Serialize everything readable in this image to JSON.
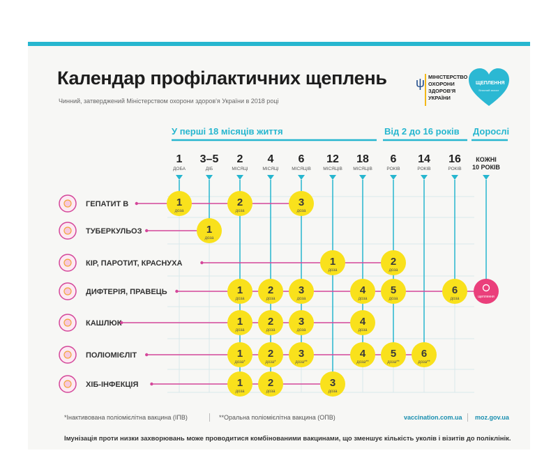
{
  "title": "Календар профілактичних щеплень",
  "subtitle": "Чинний, затверджений Міністерством охорони здоров'я України в 2018 році",
  "ministry_logo": {
    "lines": [
      "МІНІСТЕРСТВО",
      "ОХОРОНИ",
      "ЗДОРОВ'Я",
      "УКРАЇНИ"
    ],
    "icon": "trident-icon"
  },
  "heart_logo": {
    "text": "ЩЕПЛЕННЯ",
    "sub": "Власний захист",
    "color": "#2bb8d3"
  },
  "groups": [
    {
      "label": "У перші 18 місяців життя"
    },
    {
      "label": "Від 2 до 16 років"
    },
    {
      "label": "Дорослі"
    }
  ],
  "ages": [
    {
      "value": "1",
      "unit": "ДОБА"
    },
    {
      "value": "3–5",
      "unit": "ДІБ"
    },
    {
      "value": "2",
      "unit": "МІСЯЦІ"
    },
    {
      "value": "4",
      "unit": "МІСЯЦІ"
    },
    {
      "value": "6",
      "unit": "МІСЯЦІВ"
    },
    {
      "value": "12",
      "unit": "МІСЯЦІВ"
    },
    {
      "value": "18",
      "unit": "МІСЯЦІВ"
    },
    {
      "value": "6",
      "unit": "РОКІВ"
    },
    {
      "value": "14",
      "unit": "РОКІВ"
    },
    {
      "value": "16",
      "unit": "РОКІВ"
    },
    {
      "value": "КОЖНІ",
      "unit": "10 РОКІВ"
    }
  ],
  "dose_word": "доза",
  "adult_word": "щеплення",
  "diseases": [
    {
      "name": "ГЕПАТИТ В",
      "icon": "hepatitis-b-virus-icon",
      "doses": [
        {
          "col": 0,
          "num": "1",
          "mark": ""
        },
        {
          "col": 2,
          "num": "2",
          "mark": ""
        },
        {
          "col": 4,
          "num": "3",
          "mark": ""
        }
      ]
    },
    {
      "name": "ТУБЕРКУЛЬОЗ",
      "icon": "tuberculosis-bacteria-icon",
      "doses": [
        {
          "col": 1,
          "num": "1",
          "mark": ""
        }
      ]
    },
    {
      "name": "КІР, ПАРОТИТ, КРАСНУХА",
      "icon": "measles-virus-icon",
      "doses": [
        {
          "col": 5,
          "num": "1",
          "mark": ""
        },
        {
          "col": 7,
          "num": "2",
          "mark": ""
        }
      ]
    },
    {
      "name": "ДИФТЕРІЯ, ПРАВЕЦЬ",
      "icon": "diphtheria-bacteria-icon",
      "doses": [
        {
          "col": 2,
          "num": "1",
          "mark": ""
        },
        {
          "col": 3,
          "num": "2",
          "mark": ""
        },
        {
          "col": 4,
          "num": "3",
          "mark": ""
        },
        {
          "col": 6,
          "num": "4",
          "mark": ""
        },
        {
          "col": 7,
          "num": "5",
          "mark": ""
        },
        {
          "col": 9,
          "num": "6",
          "mark": ""
        }
      ],
      "adult": true
    },
    {
      "name": "КАШЛЮК",
      "icon": "pertussis-bacteria-icon",
      "doses": [
        {
          "col": 2,
          "num": "1",
          "mark": ""
        },
        {
          "col": 3,
          "num": "2",
          "mark": ""
        },
        {
          "col": 4,
          "num": "3",
          "mark": ""
        },
        {
          "col": 6,
          "num": "4",
          "mark": ""
        }
      ]
    },
    {
      "name": "ПОЛІОМІЄЛІТ",
      "icon": "polio-virus-icon",
      "doses": [
        {
          "col": 2,
          "num": "1",
          "mark": "*"
        },
        {
          "col": 3,
          "num": "2",
          "mark": "*"
        },
        {
          "col": 4,
          "num": "3",
          "mark": "**"
        },
        {
          "col": 6,
          "num": "4",
          "mark": "**"
        },
        {
          "col": 7,
          "num": "5",
          "mark": "**"
        },
        {
          "col": 8,
          "num": "6",
          "mark": "**"
        }
      ]
    },
    {
      "name": "ХІБ-ІНФЕКЦІЯ",
      "icon": "hib-bacteria-icon",
      "doses": [
        {
          "col": 2,
          "num": "1",
          "mark": ""
        },
        {
          "col": 3,
          "num": "2",
          "mark": ""
        },
        {
          "col": 5,
          "num": "3",
          "mark": ""
        }
      ]
    }
  ],
  "footnotes": {
    "ipv": "*Інактивована поліомієлітна вакцина (ІПВ)",
    "opv": "**Оральна поліомієлітна вакцина (ОПВ)",
    "link1": "vaccination.com.ua",
    "link2": "moz.gov.ua"
  },
  "bottom_note": "Імунізація проти низки захворювань може проводитися комбінованими вакцинами, що зменшує кількість уколів і візитів до поліклінік.",
  "colors": {
    "accent": "#26b6cf",
    "dose": "#f9e11c",
    "pink": "#d4479a",
    "adult": "#ea3f7b",
    "grid": "#d8e8ec"
  }
}
